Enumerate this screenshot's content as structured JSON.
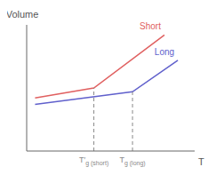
{
  "chart_data": {
    "type": "line",
    "xlabel": "T",
    "ylabel": "Volume",
    "xlim": [
      0,
      1.0
    ],
    "ylim": [
      0,
      1.0
    ],
    "tick_labels": false,
    "series": [
      {
        "name": "Short",
        "color": "#e06060",
        "x": [
          0.05,
          0.4,
          0.82
        ],
        "values": [
          0.42,
          0.5,
          0.92
        ]
      },
      {
        "name": "Long",
        "color": "#6060cc",
        "x": [
          0.05,
          0.63,
          0.9
        ],
        "values": [
          0.37,
          0.47,
          0.72
        ]
      },
      {
        "name": "T′g (short)",
        "color": "#888888",
        "line_style": "dashed",
        "x": [
          0.4,
          0.4
        ],
        "values": [
          0,
          0.5
        ]
      },
      {
        "name": "Tg (long)",
        "color": "#888888",
        "line_style": "dashed",
        "x": [
          0.63,
          0.63
        ],
        "values": [
          0,
          0.47
        ]
      }
    ]
  }
}
